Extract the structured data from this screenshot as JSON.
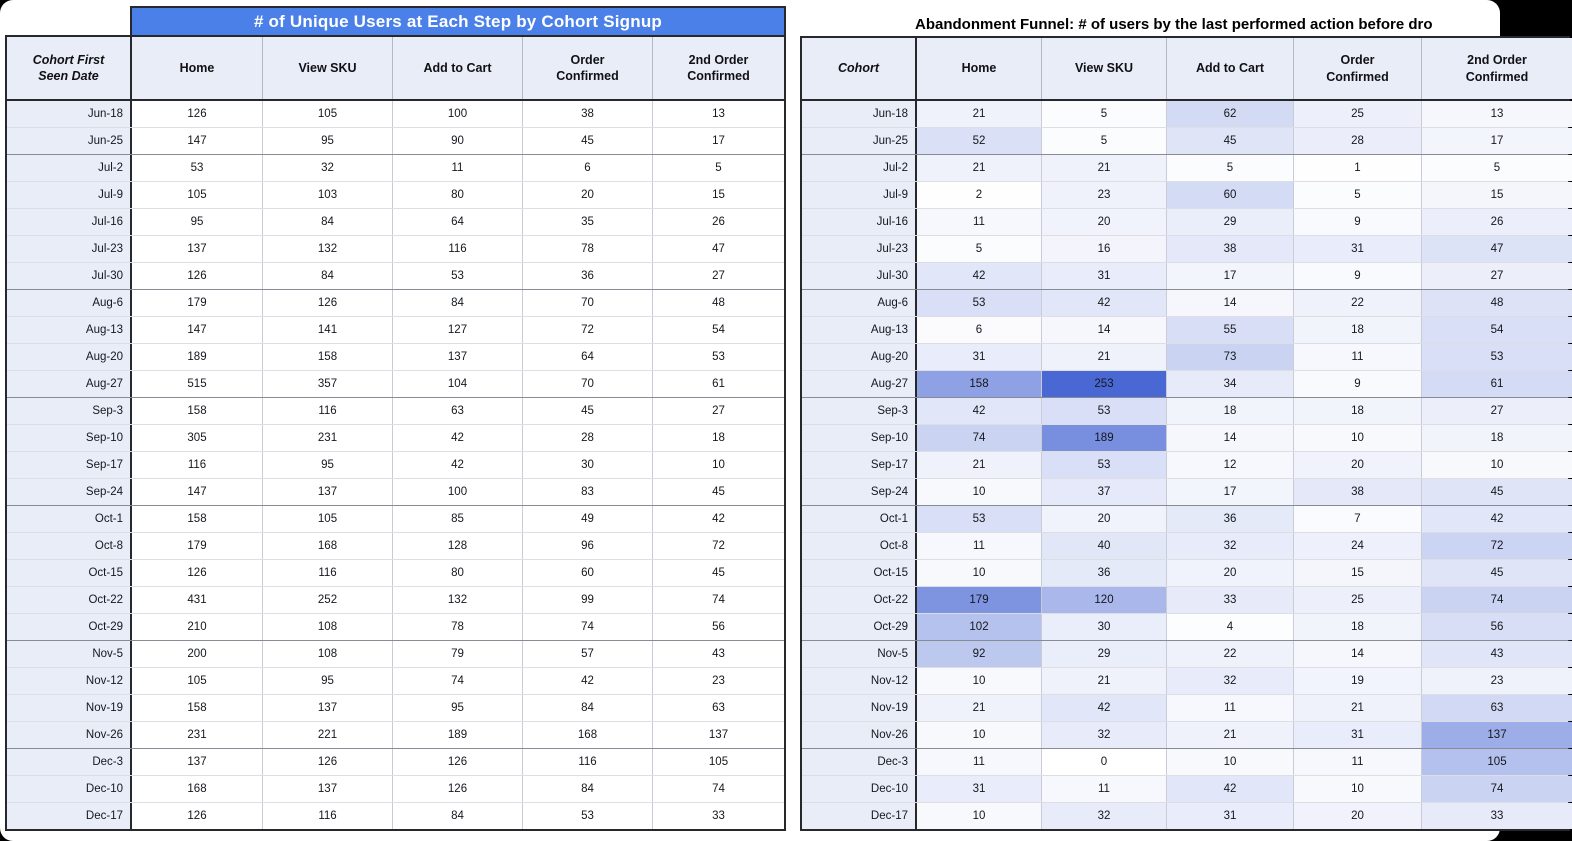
{
  "chart_data": [
    {
      "type": "table",
      "id": "unique-users",
      "title": "# of Unique Users at Each Step by Cohort Signup",
      "columns": [
        "Cohort First Seen Date",
        "Home",
        "View SKU",
        "Add to Cart",
        "Order Confirmed",
        "2nd Order Confirmed"
      ],
      "rows": [
        [
          "Jun-18",
          126,
          105,
          100,
          38,
          13
        ],
        [
          "Jun-25",
          147,
          95,
          90,
          45,
          17
        ],
        [
          "Jul-2",
          53,
          32,
          11,
          6,
          5
        ],
        [
          "Jul-9",
          105,
          103,
          80,
          20,
          15
        ],
        [
          "Jul-16",
          95,
          84,
          64,
          35,
          26
        ],
        [
          "Jul-23",
          137,
          132,
          116,
          78,
          47
        ],
        [
          "Jul-30",
          126,
          84,
          53,
          36,
          27
        ],
        [
          "Aug-6",
          179,
          126,
          84,
          70,
          48
        ],
        [
          "Aug-13",
          147,
          141,
          127,
          72,
          54
        ],
        [
          "Aug-20",
          189,
          158,
          137,
          64,
          53
        ],
        [
          "Aug-27",
          515,
          357,
          104,
          70,
          61
        ],
        [
          "Sep-3",
          158,
          116,
          63,
          45,
          27
        ],
        [
          "Sep-10",
          305,
          231,
          42,
          28,
          18
        ],
        [
          "Sep-17",
          116,
          95,
          42,
          30,
          10
        ],
        [
          "Sep-24",
          147,
          137,
          100,
          83,
          45
        ],
        [
          "Oct-1",
          158,
          105,
          85,
          49,
          42
        ],
        [
          "Oct-8",
          179,
          168,
          128,
          96,
          72
        ],
        [
          "Oct-15",
          126,
          116,
          80,
          60,
          45
        ],
        [
          "Oct-22",
          431,
          252,
          132,
          99,
          74
        ],
        [
          "Oct-29",
          210,
          108,
          78,
          74,
          56
        ],
        [
          "Nov-5",
          200,
          108,
          79,
          57,
          43
        ],
        [
          "Nov-12",
          105,
          95,
          74,
          42,
          23
        ],
        [
          "Nov-19",
          158,
          137,
          95,
          84,
          63
        ],
        [
          "Nov-26",
          231,
          221,
          189,
          168,
          137
        ],
        [
          "Dec-3",
          137,
          126,
          126,
          116,
          105
        ],
        [
          "Dec-10",
          168,
          137,
          126,
          84,
          74
        ],
        [
          "Dec-17",
          126,
          116,
          84,
          53,
          33
        ]
      ],
      "title_bar_color": "#4a80e8",
      "title_text_color": "#ffffff",
      "header_bg": "#e9edf8",
      "cohort_col_bg": "#e9edf8"
    },
    {
      "type": "table",
      "id": "abandonment-funnel",
      "title": "Abandonment Funnel: # of users by the last performed action before dro",
      "columns": [
        "Cohort",
        "Home",
        "View SKU",
        "Add to Cart",
        "Order Confirmed",
        "2nd Order Confirmed"
      ],
      "rows": [
        [
          "Jun-18",
          21,
          5,
          62,
          25,
          13
        ],
        [
          "Jun-25",
          52,
          5,
          45,
          28,
          17
        ],
        [
          "Jul-2",
          21,
          21,
          5,
          1,
          5
        ],
        [
          "Jul-9",
          2,
          23,
          60,
          5,
          15
        ],
        [
          "Jul-16",
          11,
          20,
          29,
          9,
          26
        ],
        [
          "Jul-23",
          5,
          16,
          38,
          31,
          47
        ],
        [
          "Jul-30",
          42,
          31,
          17,
          9,
          27
        ],
        [
          "Aug-6",
          53,
          42,
          14,
          22,
          48
        ],
        [
          "Aug-13",
          6,
          14,
          55,
          18,
          54
        ],
        [
          "Aug-20",
          31,
          21,
          73,
          11,
          53
        ],
        [
          "Aug-27",
          158,
          253,
          34,
          9,
          61
        ],
        [
          "Sep-3",
          42,
          53,
          18,
          18,
          27
        ],
        [
          "Sep-10",
          74,
          189,
          14,
          10,
          18
        ],
        [
          "Sep-17",
          21,
          53,
          12,
          20,
          10
        ],
        [
          "Sep-24",
          10,
          37,
          17,
          38,
          45
        ],
        [
          "Oct-1",
          53,
          20,
          36,
          7,
          42
        ],
        [
          "Oct-8",
          11,
          40,
          32,
          24,
          72
        ],
        [
          "Oct-15",
          10,
          36,
          20,
          15,
          45
        ],
        [
          "Oct-22",
          179,
          120,
          33,
          25,
          74
        ],
        [
          "Oct-29",
          102,
          30,
          4,
          18,
          56
        ],
        [
          "Nov-5",
          92,
          29,
          22,
          14,
          43
        ],
        [
          "Nov-12",
          10,
          21,
          32,
          19,
          23
        ],
        [
          "Nov-19",
          21,
          42,
          11,
          21,
          63
        ],
        [
          "Nov-26",
          10,
          32,
          21,
          31,
          137
        ],
        [
          "Dec-3",
          11,
          0,
          10,
          11,
          105
        ],
        [
          "Dec-10",
          31,
          11,
          42,
          10,
          74
        ],
        [
          "Dec-17",
          10,
          32,
          31,
          20,
          33
        ]
      ],
      "heatmap": {
        "min_value": 0,
        "max_value": 253,
        "min_color": "#ffffff",
        "max_color": "#4a68d4"
      },
      "clipped_at_right_edge": true,
      "header_bg": "#e9edf8",
      "cohort_col_bg": "#e9edf8"
    }
  ]
}
